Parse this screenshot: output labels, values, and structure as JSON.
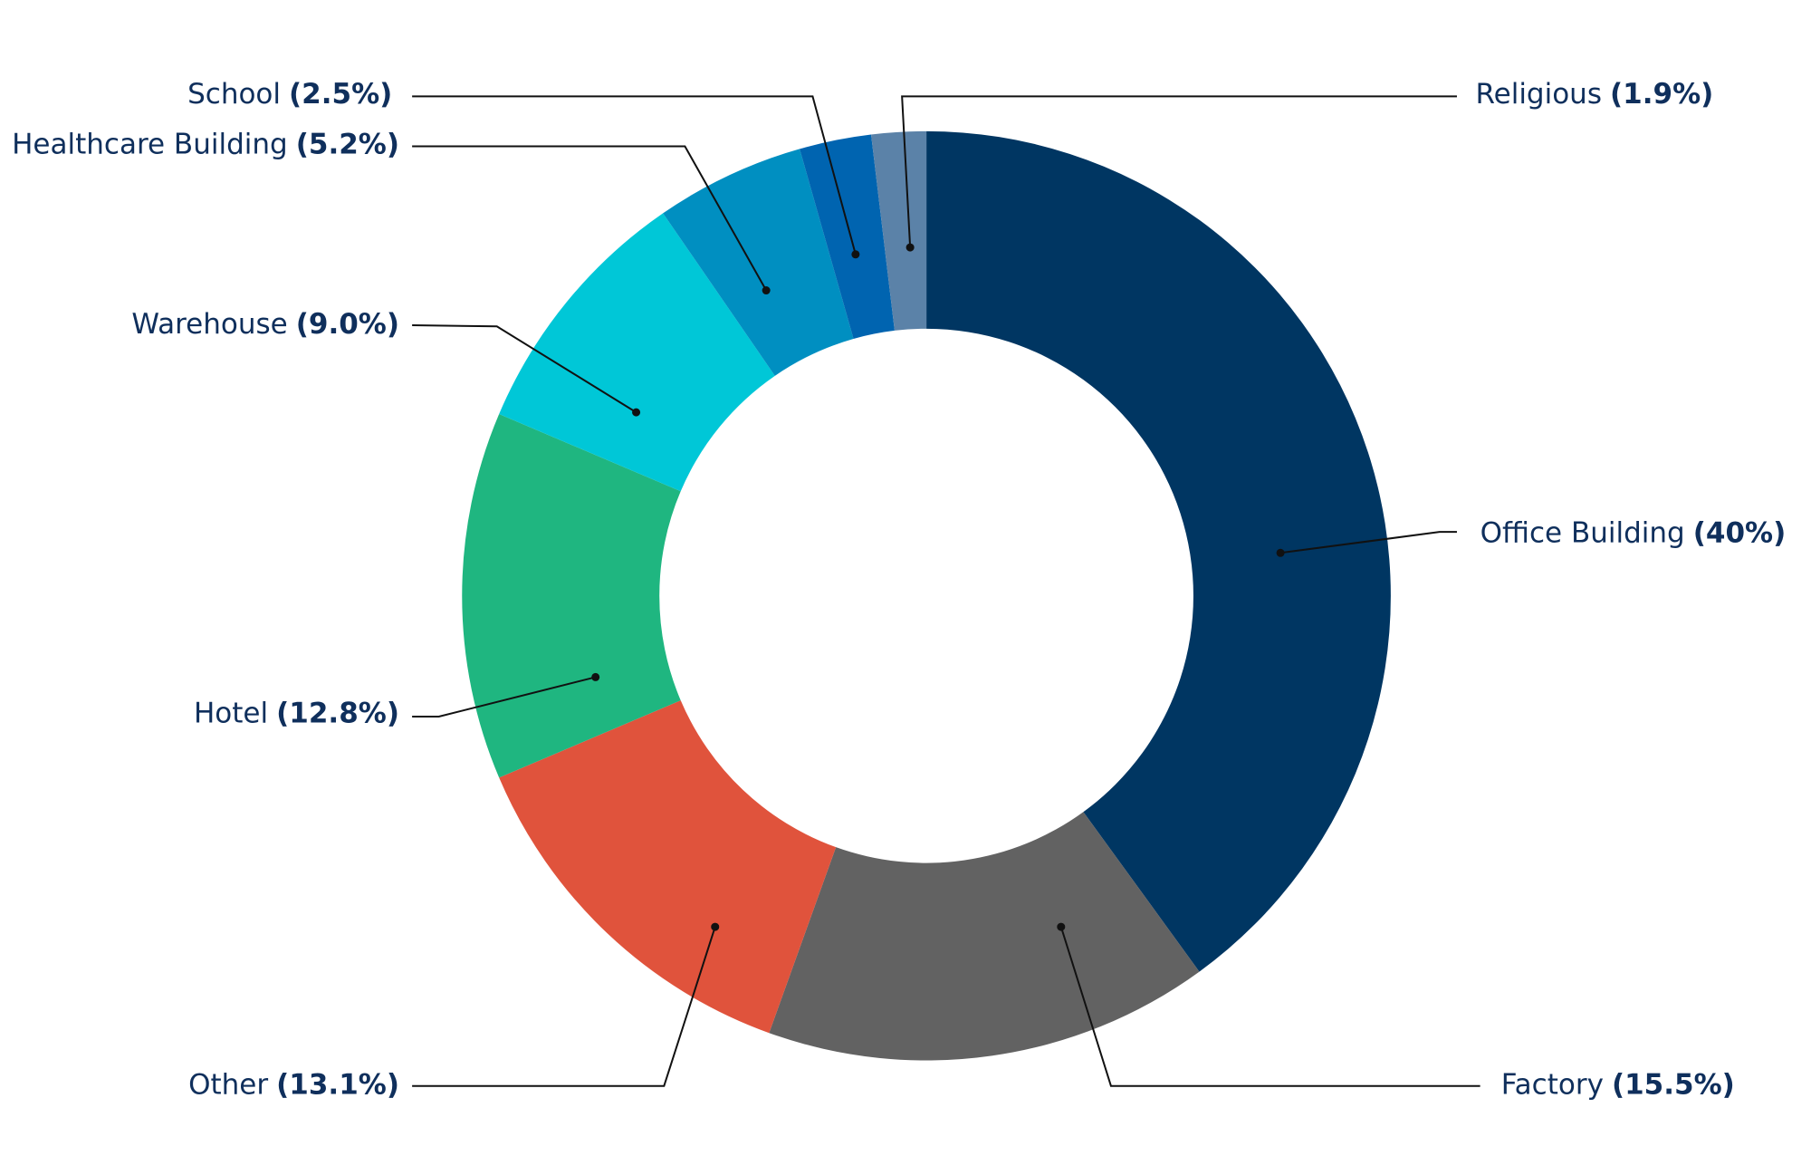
{
  "chart_data": {
    "type": "donut",
    "categories": [
      "Office Building",
      "Factory",
      "Other",
      "Hotel",
      "Warehouse",
      "Healthcare Building",
      "School",
      "Religious"
    ],
    "values": [
      40,
      15.5,
      13.1,
      12.8,
      9.0,
      5.2,
      2.5,
      1.9
    ],
    "value_labels": [
      "(40%)",
      "(15.5%)",
      "(13.1%)",
      "(12.8%)",
      "(9.0%)",
      "(5.2%)",
      "(2.5%)",
      "(1.9%)"
    ],
    "colors": [
      "#003662",
      "#626262",
      "#e0533c",
      "#1fb680",
      "#00c7d7",
      "#008fc1",
      "#0064b0",
      "#5b82a8"
    ]
  }
}
